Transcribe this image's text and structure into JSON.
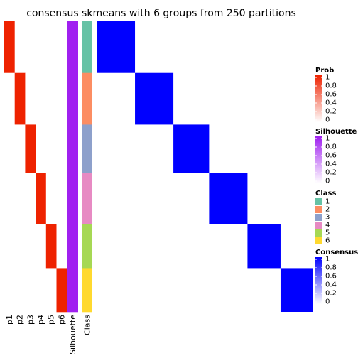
{
  "chart_data": {
    "type": "heatmap",
    "title": "consensus skmeans with 6 groups from 250 partitions",
    "column_labels": [
      "p1",
      "p2",
      "p3",
      "p4",
      "p5",
      "p6",
      "Silhouette",
      "Class"
    ],
    "groups": [
      {
        "class": 1,
        "rows": 72,
        "p": [
          1,
          0,
          0,
          0,
          0,
          0
        ],
        "silhouette": 1
      },
      {
        "class": 2,
        "rows": 72,
        "p": [
          0,
          1,
          0,
          0,
          0,
          0
        ],
        "silhouette": 1
      },
      {
        "class": 3,
        "rows": 67,
        "p": [
          0,
          0,
          1,
          0,
          0,
          0
        ],
        "silhouette": 1
      },
      {
        "class": 4,
        "rows": 72,
        "p": [
          0,
          0,
          0,
          1,
          0,
          0
        ],
        "silhouette": 1
      },
      {
        "class": 5,
        "rows": 62,
        "p": [
          0,
          0,
          0,
          0,
          1,
          0
        ],
        "silhouette": 1
      },
      {
        "class": 6,
        "rows": 60,
        "p": [
          0,
          0,
          0,
          0,
          0,
          1
        ],
        "silhouette": 1
      }
    ],
    "consensus_matrix": "block diagonal: 1 within the same class, approximately 0 between classes",
    "legends": [
      {
        "title": "Prob",
        "ticks": [
          "1",
          "0.8",
          "0.6",
          "0.4",
          "0.2",
          "0"
        ],
        "colors": [
          "#ffffff",
          "#ee2200"
        ]
      },
      {
        "title": "Silhouette",
        "ticks": [
          "1",
          "0.8",
          "0.6",
          "0.4",
          "0.2",
          "0"
        ],
        "colors": [
          "#ffffff",
          "#a020f0"
        ]
      },
      {
        "title": "Class",
        "entries": [
          "1",
          "2",
          "3",
          "4",
          "5",
          "6"
        ],
        "colors": [
          "#66c2a5",
          "#fc8d62",
          "#8da0cb",
          "#e78ac3",
          "#a6d854",
          "#ffd92f"
        ]
      },
      {
        "title": "Consensus",
        "ticks": [
          "1",
          "0.8",
          "0.6",
          "0.4",
          "0.2",
          "0"
        ],
        "colors": [
          "#ffffff",
          "#0000ff"
        ]
      }
    ]
  }
}
